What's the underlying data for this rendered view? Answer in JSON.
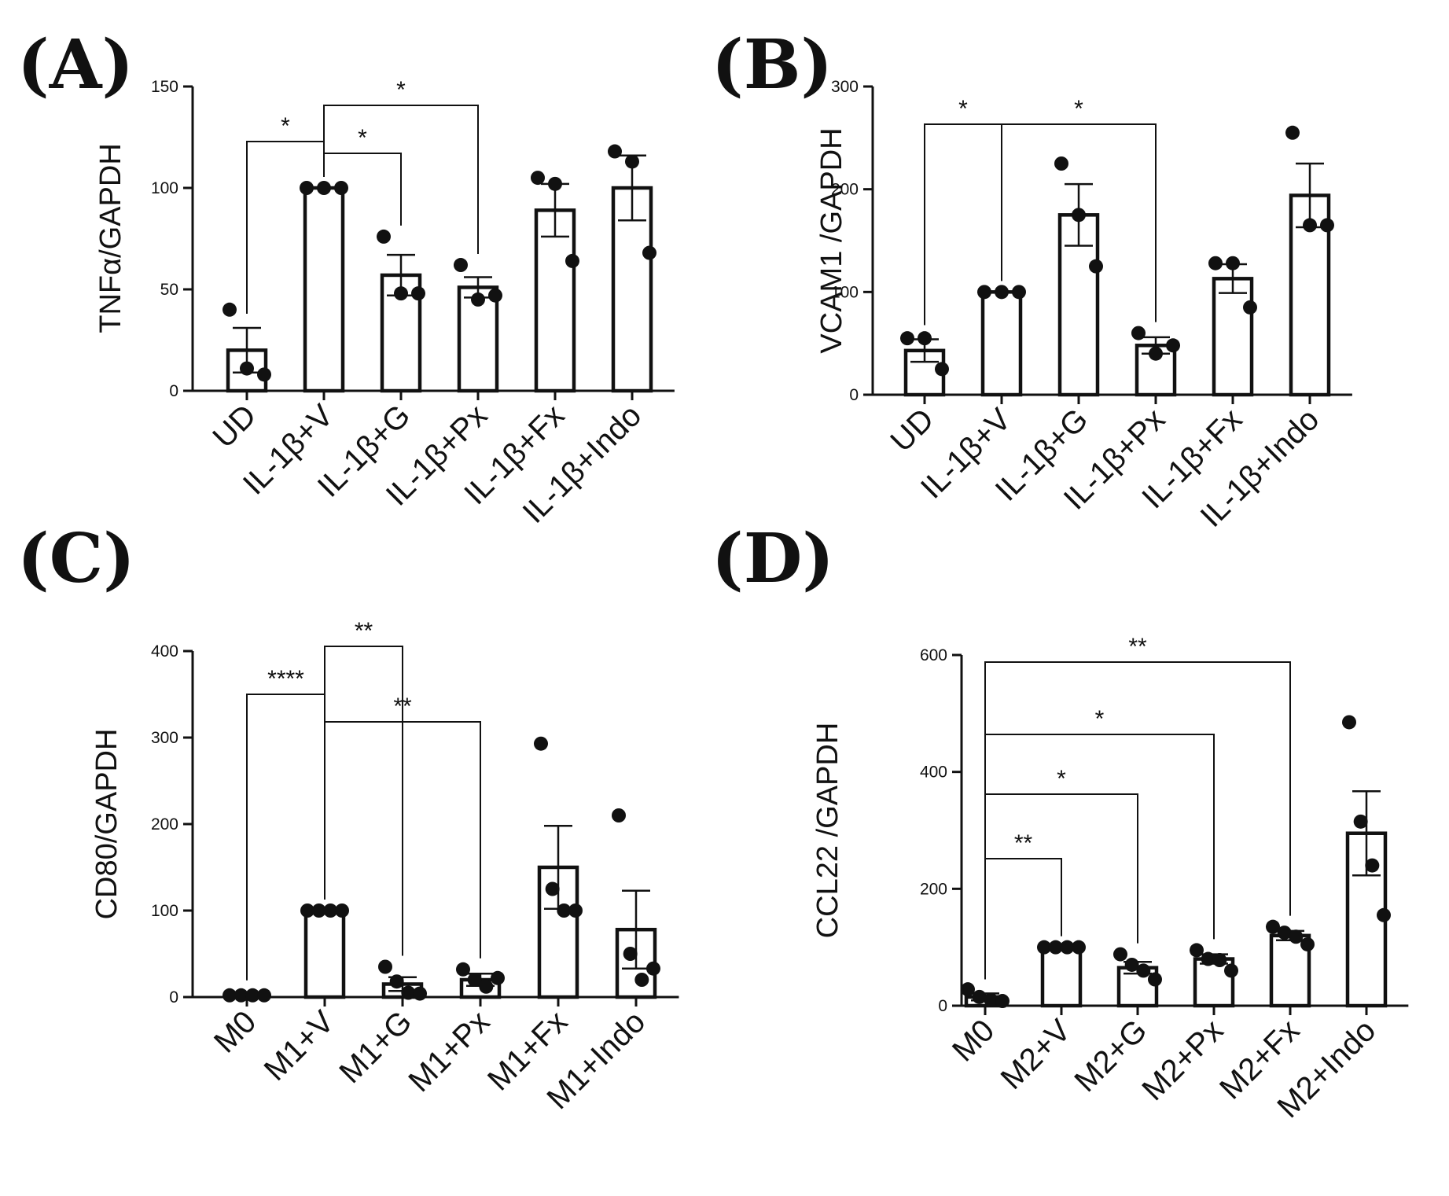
{
  "chart_data": [
    {
      "panel": "(A)",
      "type": "bar",
      "ylabel": "TNFα/GAPDH",
      "ylim": [
        0,
        150
      ],
      "yticks": [
        "0",
        "50",
        "100",
        "150"
      ],
      "categories": [
        "UD",
        "IL-1β+V",
        "IL-1β+G",
        "IL-1β+Px",
        "IL-1β+Fx",
        "IL-1β+Indo"
      ],
      "values": [
        20,
        100,
        57,
        51,
        89,
        100
      ],
      "sem": [
        11,
        0,
        10,
        5,
        13,
        16
      ],
      "points": [
        [
          40,
          11,
          8
        ],
        [
          100,
          100,
          100
        ],
        [
          76,
          48,
          48
        ],
        [
          62,
          45,
          47
        ],
        [
          105,
          102,
          64
        ],
        [
          118,
          113,
          68
        ]
      ],
      "significance": [
        {
          "from": 0,
          "to": 1,
          "label": "*"
        },
        {
          "from": 1,
          "to": 2,
          "label": "*"
        },
        {
          "from": 1,
          "to": 3,
          "label": "*"
        }
      ]
    },
    {
      "panel": "(B)",
      "type": "bar",
      "ylabel": "VCAM1 /GAPDH",
      "ylim": [
        0,
        300
      ],
      "yticks": [
        "0",
        "100",
        "200",
        "300"
      ],
      "categories": [
        "UD",
        "IL-1β+V",
        "IL-1β+G",
        "IL-1β+Px",
        "IL-1β+Fx",
        "IL-1β+Indo"
      ],
      "values": [
        43,
        100,
        175,
        48,
        113,
        194
      ],
      "sem": [
        11,
        0,
        30,
        8,
        14,
        31
      ],
      "points": [
        [
          55,
          55,
          25
        ],
        [
          100,
          100,
          100
        ],
        [
          225,
          175,
          125
        ],
        [
          60,
          40,
          48
        ],
        [
          128,
          128,
          85
        ],
        [
          255,
          165,
          165
        ]
      ],
      "significance": [
        {
          "from": 0,
          "to": 1,
          "label": "*"
        },
        {
          "from": 1,
          "to": 3,
          "label": "*"
        }
      ]
    },
    {
      "panel": "(C)",
      "type": "bar",
      "ylabel": "CD80/GAPDH",
      "ylim": [
        0,
        400
      ],
      "yticks": [
        "0",
        "100",
        "200",
        "300",
        "400"
      ],
      "categories": [
        "M0",
        "M1+V",
        "M1+G",
        "M1+Px",
        "M1+Fx",
        "M1+Indo"
      ],
      "values": [
        2,
        100,
        15,
        20,
        150,
        78
      ],
      "sem": [
        1,
        0,
        8,
        7,
        48,
        45
      ],
      "points": [
        [
          2,
          2,
          2,
          2
        ],
        [
          100,
          100,
          100,
          100
        ],
        [
          35,
          18,
          5,
          4
        ],
        [
          32,
          20,
          12,
          22
        ],
        [
          293,
          125,
          100,
          100
        ],
        [
          210,
          50,
          20,
          33
        ]
      ],
      "significance": [
        {
          "from": 0,
          "to": 1,
          "label": "****"
        },
        {
          "from": 1,
          "to": 2,
          "label": "**"
        },
        {
          "from": 1,
          "to": 3,
          "label": "**"
        }
      ]
    },
    {
      "panel": "(D)",
      "type": "bar",
      "ylabel": "CCL22 /GAPDH",
      "ylim": [
        0,
        600
      ],
      "yticks": [
        "0",
        "200",
        "400",
        "600"
      ],
      "categories": [
        "M0",
        "M2+V",
        "M2+G",
        "M2+Px",
        "M2+Fx",
        "M2+Indo"
      ],
      "values": [
        15,
        100,
        65,
        80,
        120,
        295
      ],
      "sem": [
        6,
        0,
        10,
        8,
        8,
        72
      ],
      "points": [
        [
          28,
          15,
          10,
          8
        ],
        [
          100,
          100,
          100,
          100
        ],
        [
          88,
          70,
          60,
          45
        ],
        [
          95,
          80,
          78,
          60
        ],
        [
          135,
          125,
          118,
          105
        ],
        [
          485,
          315,
          240,
          155
        ]
      ],
      "significance": [
        {
          "from": 0,
          "to": 1,
          "label": "**"
        },
        {
          "from": 0,
          "to": 2,
          "label": "*"
        },
        {
          "from": 0,
          "to": 3,
          "label": "*"
        },
        {
          "from": 0,
          "to": 4,
          "label": "**"
        }
      ]
    }
  ]
}
